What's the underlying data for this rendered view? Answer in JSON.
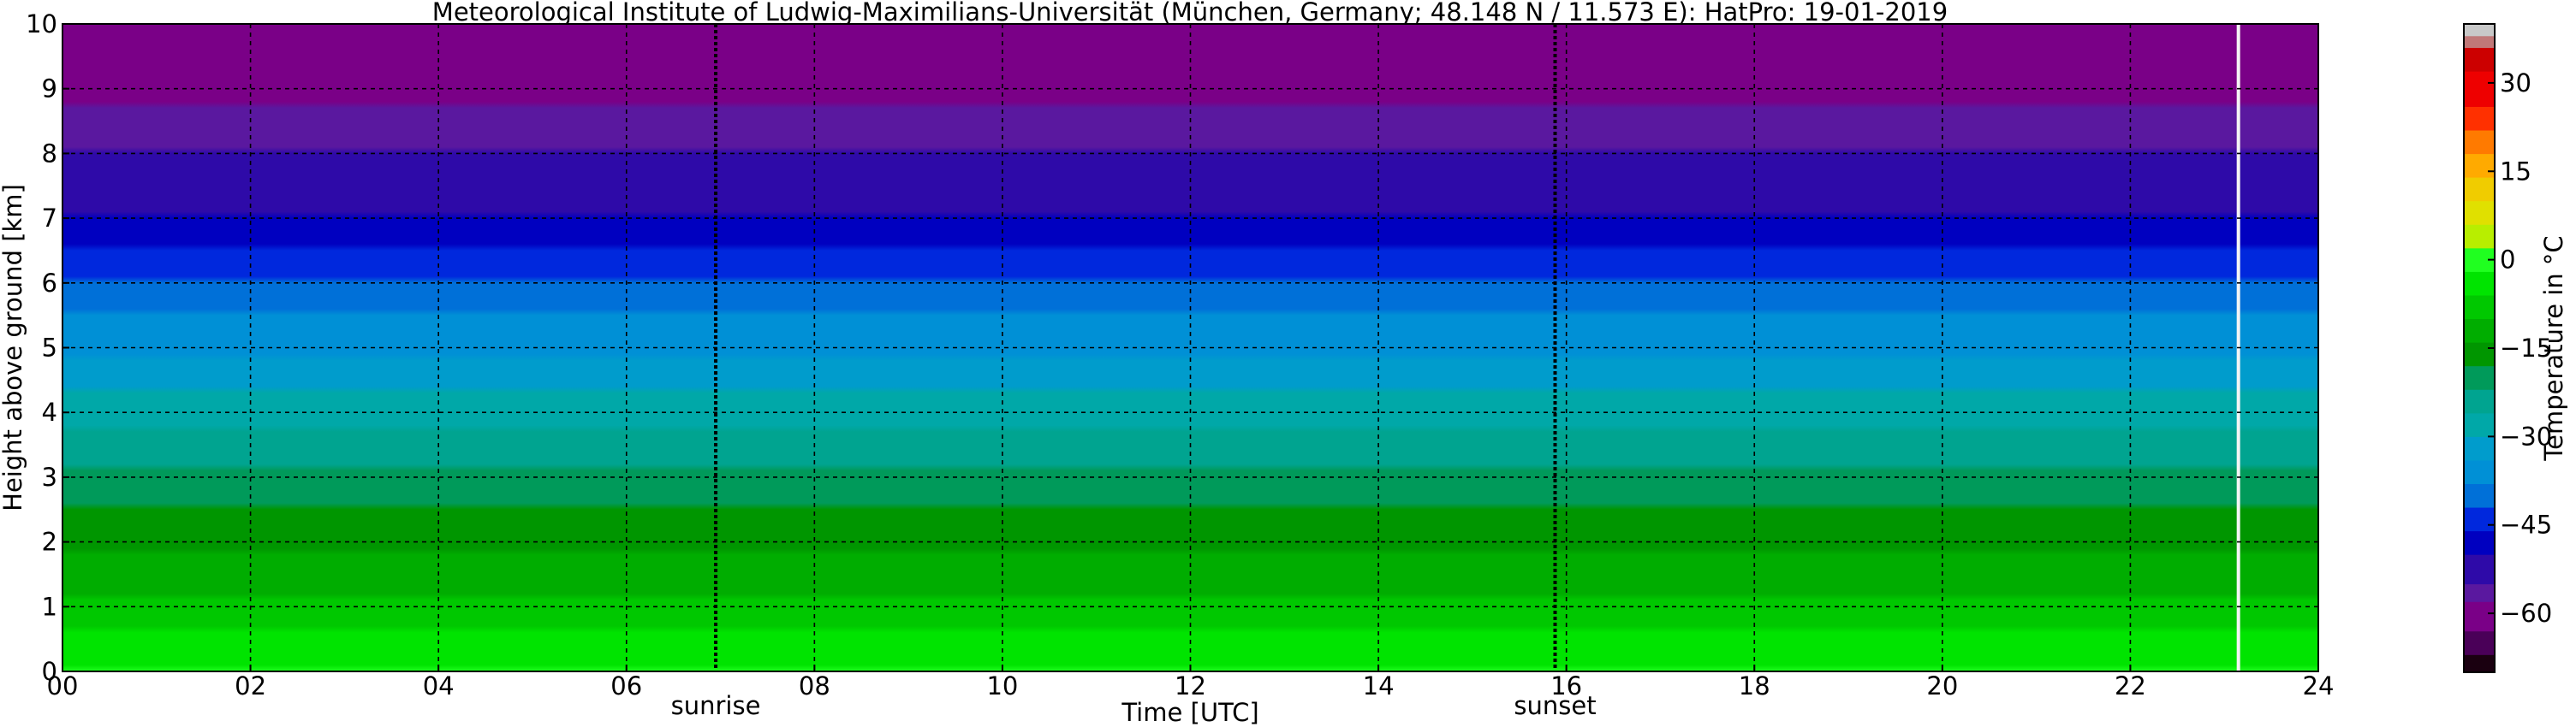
{
  "chart_data": {
    "type": "heatmap",
    "title": "Meteorological Institute of Ludwig-Maximilians-Universität (München, Germany; 48.148 N / 11.573 E):    HatPro: 19-01-2019",
    "xlabel": "Time [UTC]",
    "ylabel": "Height above ground [km]",
    "xlim": [
      0,
      24
    ],
    "ylim": [
      0,
      10
    ],
    "x_ticks": [
      0,
      2,
      4,
      6,
      8,
      10,
      12,
      14,
      16,
      18,
      20,
      22,
      24
    ],
    "x_tick_labels": [
      "00",
      "02",
      "04",
      "06",
      "08",
      "10",
      "12",
      "14",
      "16",
      "18",
      "20",
      "22",
      "24"
    ],
    "y_ticks": [
      0,
      1,
      2,
      3,
      4,
      5,
      6,
      7,
      8,
      9,
      10
    ],
    "y_tick_labels": [
      "0",
      "1",
      "2",
      "3",
      "4",
      "5",
      "6",
      "7",
      "8",
      "9",
      "10"
    ],
    "grid": true,
    "annotations": [
      {
        "label": "sunrise",
        "x": 6.95
      },
      {
        "label": "sunset",
        "x": 15.88
      }
    ],
    "data_gap_x": 23.15,
    "temperature_profile": {
      "height_km": [
        0,
        0.5,
        1,
        1.5,
        2,
        2.5,
        3,
        3.5,
        4,
        4.5,
        5,
        5.5,
        6,
        6.5,
        7,
        7.5,
        8,
        8.5,
        9,
        9.5,
        10
      ],
      "temperature_c": [
        -2,
        -5,
        -9,
        -12,
        -15,
        -18,
        -21,
        -24,
        -28,
        -31,
        -35,
        -38,
        -42,
        -46,
        -50,
        -53,
        -55,
        -57,
        -59,
        -62,
        -63
      ]
    },
    "colorbar": {
      "label": "Temperature in °C",
      "range": [
        -70,
        40
      ],
      "tick_values": [
        -60,
        -45,
        -30,
        -15,
        0,
        15,
        30
      ],
      "tick_labels": [
        "−60",
        "−45",
        "−30",
        "−15",
        "0",
        "15",
        "30"
      ],
      "colors": [
        {
          "from": -70,
          "to": -67,
          "color": "#1a0010"
        },
        {
          "from": -67,
          "to": -63,
          "color": "#4a0058"
        },
        {
          "from": -63,
          "to": -58,
          "color": "#7a0087"
        },
        {
          "from": -58,
          "to": -55,
          "color": "#5a189f"
        },
        {
          "from": -55,
          "to": -50,
          "color": "#2e0aa8"
        },
        {
          "from": -50,
          "to": -46,
          "color": "#0000c0"
        },
        {
          "from": -46,
          "to": -42,
          "color": "#0028dd"
        },
        {
          "from": -42,
          "to": -38,
          "color": "#0070d8"
        },
        {
          "from": -38,
          "to": -34,
          "color": "#0090d6"
        },
        {
          "from": -34,
          "to": -30,
          "color": "#009ccc"
        },
        {
          "from": -30,
          "to": -26,
          "color": "#00a8a8"
        },
        {
          "from": -26,
          "to": -22,
          "color": "#00a490"
        },
        {
          "from": -22,
          "to": -18,
          "color": "#009a5a"
        },
        {
          "from": -18,
          "to": -14,
          "color": "#009600"
        },
        {
          "from": -14,
          "to": -10,
          "color": "#00ad00"
        },
        {
          "from": -10,
          "to": -6,
          "color": "#00c800"
        },
        {
          "from": -6,
          "to": -2,
          "color": "#00e400"
        },
        {
          "from": -2,
          "to": 2,
          "color": "#20ff20"
        },
        {
          "from": 2,
          "to": 6,
          "color": "#b8ee00"
        },
        {
          "from": 6,
          "to": 10,
          "color": "#e0e000"
        },
        {
          "from": 10,
          "to": 14,
          "color": "#f0cc00"
        },
        {
          "from": 14,
          "to": 18,
          "color": "#ffaa00"
        },
        {
          "from": 18,
          "to": 22,
          "color": "#ff7a00"
        },
        {
          "from": 22,
          "to": 26,
          "color": "#ff3000"
        },
        {
          "from": 26,
          "to": 32,
          "color": "#ee0000"
        },
        {
          "from": 32,
          "to": 36,
          "color": "#cc0000"
        },
        {
          "from": 36,
          "to": 38,
          "color": "#c07878"
        },
        {
          "from": 38,
          "to": 40,
          "color": "#c8c8c8"
        }
      ]
    }
  }
}
